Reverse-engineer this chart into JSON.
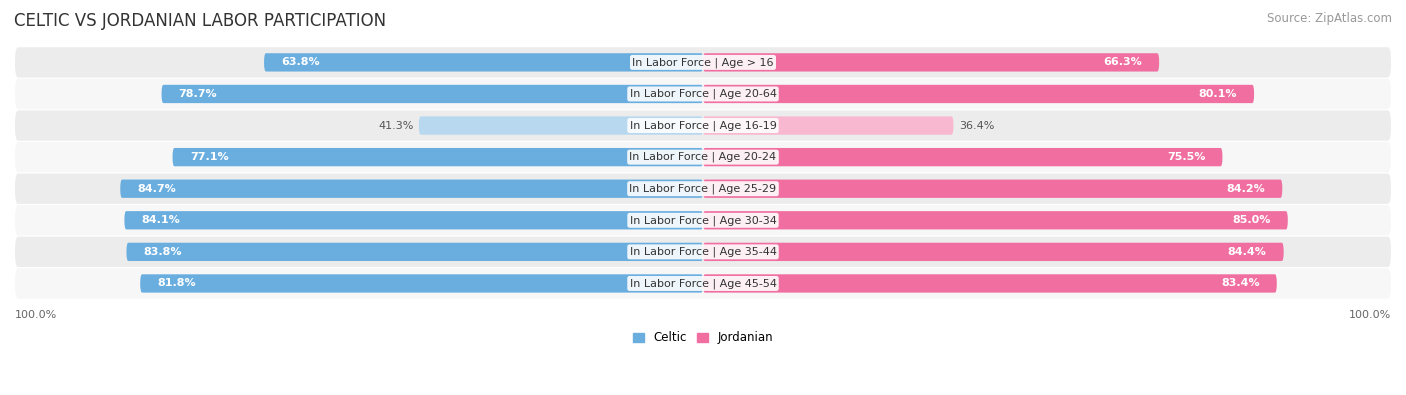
{
  "title": "CELTIC VS JORDANIAN LABOR PARTICIPATION",
  "source": "Source: ZipAtlas.com",
  "categories": [
    "In Labor Force | Age > 16",
    "In Labor Force | Age 20-64",
    "In Labor Force | Age 16-19",
    "In Labor Force | Age 20-24",
    "In Labor Force | Age 25-29",
    "In Labor Force | Age 30-34",
    "In Labor Force | Age 35-44",
    "In Labor Force | Age 45-54"
  ],
  "celtic_values": [
    63.8,
    78.7,
    41.3,
    77.1,
    84.7,
    84.1,
    83.8,
    81.8
  ],
  "jordanian_values": [
    66.3,
    80.1,
    36.4,
    75.5,
    84.2,
    85.0,
    84.4,
    83.4
  ],
  "celtic_color": "#6aaee0",
  "celtic_color_light": "#b8d8f0",
  "jordanian_color": "#f06fa0",
  "jordanian_color_light": "#f8b8d0",
  "row_bg_color_odd": "#ececec",
  "row_bg_color_even": "#f7f7f7",
  "max_value": 100.0,
  "bar_height": 0.58,
  "legend_labels": [
    "Celtic",
    "Jordanian"
  ],
  "title_fontsize": 12,
  "source_fontsize": 8.5,
  "cat_label_fontsize": 8,
  "value_fontsize": 8,
  "axis_label_fontsize": 8,
  "background_color": "#ffffff",
  "value_text_color_white": "#ffffff",
  "value_text_color_dark": "#555555"
}
